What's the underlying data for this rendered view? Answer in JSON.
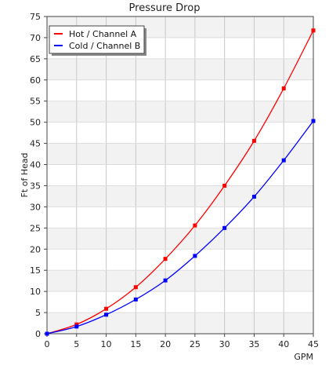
{
  "chart_data": {
    "type": "line",
    "title": "Pressure Drop",
    "xlabel": "GPM",
    "ylabel": "Ft of Head",
    "xlim": [
      0,
      45
    ],
    "ylim": [
      0,
      75
    ],
    "xticks": [
      0,
      5,
      10,
      15,
      20,
      25,
      30,
      35,
      40,
      45
    ],
    "yticks": [
      0,
      5,
      10,
      15,
      20,
      25,
      30,
      35,
      40,
      45,
      50,
      55,
      60,
      65,
      70,
      75
    ],
    "grid": true,
    "legend_position": "top-left",
    "series": [
      {
        "name": "Hot / Channel A",
        "color": "#ff0000",
        "x": [
          0,
          5,
          10,
          15,
          20,
          25,
          30,
          35,
          40,
          45
        ],
        "y": [
          0,
          2.2,
          5.9,
          11.0,
          17.7,
          25.6,
          35.0,
          45.6,
          58.0,
          71.7
        ]
      },
      {
        "name": "Cold / Channel B",
        "color": "#0000ff",
        "x": [
          0,
          5,
          10,
          15,
          20,
          25,
          30,
          35,
          40,
          45
        ],
        "y": [
          0,
          1.7,
          4.5,
          8.1,
          12.6,
          18.4,
          25.0,
          32.4,
          41.0,
          50.3
        ]
      }
    ]
  }
}
